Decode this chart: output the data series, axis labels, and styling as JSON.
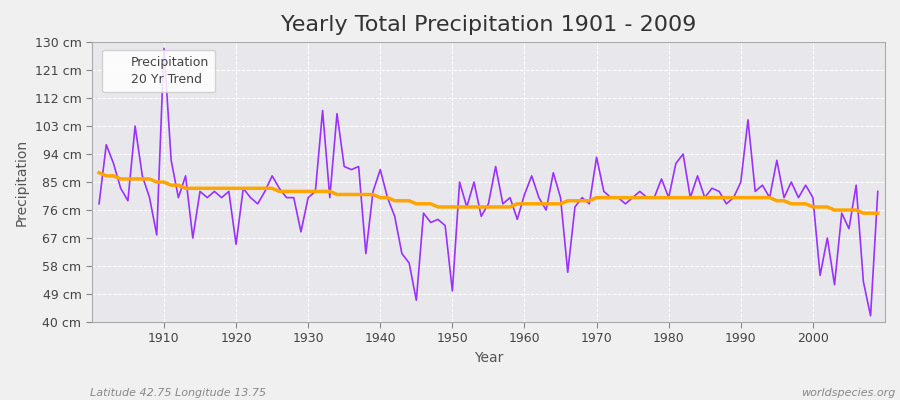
{
  "title": "Yearly Total Precipitation 1901 - 2009",
  "xlabel": "Year",
  "ylabel": "Precipitation",
  "subtitle": "Latitude 42.75 Longitude 13.75",
  "watermark": "worldspecies.org",
  "precip_color": "#9B30FF",
  "trend_color": "#FFA500",
  "bg_color": "#F0F0F0",
  "plot_bg_color": "#E8E8EC",
  "grid_color": "#FFFFFF",
  "years": [
    1901,
    1902,
    1903,
    1904,
    1905,
    1906,
    1907,
    1908,
    1909,
    1910,
    1911,
    1912,
    1913,
    1914,
    1915,
    1916,
    1917,
    1918,
    1919,
    1920,
    1921,
    1922,
    1923,
    1924,
    1925,
    1926,
    1927,
    1928,
    1929,
    1930,
    1931,
    1932,
    1933,
    1934,
    1935,
    1936,
    1937,
    1938,
    1939,
    1940,
    1941,
    1942,
    1943,
    1944,
    1945,
    1946,
    1947,
    1948,
    1949,
    1950,
    1951,
    1952,
    1953,
    1954,
    1955,
    1956,
    1957,
    1958,
    1959,
    1960,
    1961,
    1962,
    1963,
    1964,
    1965,
    1966,
    1967,
    1968,
    1969,
    1970,
    1971,
    1972,
    1973,
    1974,
    1975,
    1976,
    1977,
    1978,
    1979,
    1980,
    1981,
    1982,
    1983,
    1984,
    1985,
    1986,
    1987,
    1988,
    1989,
    1990,
    1991,
    1992,
    1993,
    1994,
    1995,
    1996,
    1997,
    1998,
    1999,
    2000,
    2001,
    2002,
    2003,
    2004,
    2005,
    2006,
    2007,
    2008,
    2009
  ],
  "precipitation": [
    78,
    97,
    91,
    83,
    79,
    103,
    87,
    80,
    68,
    128,
    92,
    80,
    87,
    67,
    82,
    80,
    82,
    80,
    82,
    65,
    83,
    80,
    78,
    82,
    87,
    83,
    80,
    80,
    69,
    80,
    82,
    108,
    80,
    107,
    90,
    89,
    90,
    62,
    82,
    89,
    80,
    74,
    62,
    59,
    47,
    75,
    72,
    73,
    71,
    50,
    85,
    77,
    85,
    74,
    78,
    90,
    78,
    80,
    73,
    81,
    87,
    80,
    76,
    88,
    80,
    56,
    77,
    80,
    78,
    93,
    82,
    80,
    80,
    78,
    80,
    82,
    80,
    80,
    86,
    80,
    91,
    94,
    80,
    87,
    80,
    83,
    82,
    78,
    80,
    85,
    105,
    82,
    84,
    80,
    92,
    80,
    85,
    80,
    84,
    80,
    55,
    67,
    52,
    75,
    70,
    84,
    53,
    42,
    82
  ],
  "trend": [
    88,
    87,
    87,
    86,
    86,
    86,
    86,
    86,
    85,
    85,
    84,
    84,
    83,
    83,
    83,
    83,
    83,
    83,
    83,
    83,
    83,
    83,
    83,
    83,
    83,
    82,
    82,
    82,
    82,
    82,
    82,
    82,
    82,
    81,
    81,
    81,
    81,
    81,
    81,
    80,
    80,
    79,
    79,
    79,
    78,
    78,
    78,
    77,
    77,
    77,
    77,
    77,
    77,
    77,
    77,
    77,
    77,
    77,
    78,
    78,
    78,
    78,
    78,
    78,
    78,
    79,
    79,
    79,
    79,
    80,
    80,
    80,
    80,
    80,
    80,
    80,
    80,
    80,
    80,
    80,
    80,
    80,
    80,
    80,
    80,
    80,
    80,
    80,
    80,
    80,
    80,
    80,
    80,
    80,
    79,
    79,
    78,
    78,
    78,
    77,
    77,
    77,
    76,
    76,
    76,
    76,
    75,
    75,
    75
  ],
  "ylim": [
    40,
    130
  ],
  "yticks": [
    40,
    49,
    58,
    67,
    76,
    85,
    94,
    103,
    112,
    121,
    130
  ],
  "ytick_labels": [
    "40 cm",
    "49 cm",
    "58 cm",
    "67 cm",
    "76 cm",
    "85 cm",
    "94 cm",
    "103 cm",
    "112 cm",
    "121 cm",
    "130 cm"
  ],
  "xlim": [
    1900,
    2010
  ],
  "xticks": [
    1910,
    1920,
    1930,
    1940,
    1950,
    1960,
    1970,
    1980,
    1990,
    2000
  ],
  "title_fontsize": 16,
  "axis_label_fontsize": 10,
  "tick_fontsize": 9,
  "legend_fontsize": 9
}
